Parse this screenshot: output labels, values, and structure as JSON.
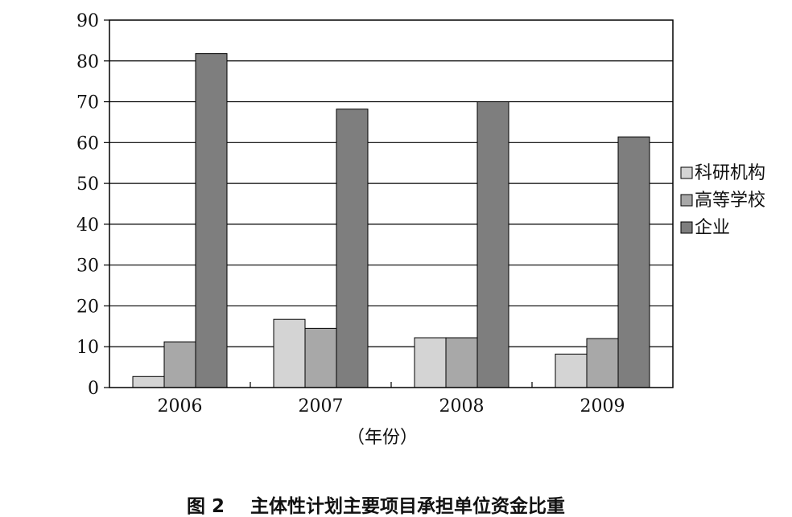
{
  "chart_data": {
    "type": "bar",
    "title": "",
    "caption_number": "图 2",
    "caption_text": "主体性计划主要项目承担单位资金比重",
    "xlabel": "（年份）",
    "ylabel": "",
    "categories": [
      "2006",
      "2007",
      "2008",
      "2009"
    ],
    "ylim": [
      0,
      90
    ],
    "yticks": [
      0,
      10,
      20,
      30,
      40,
      50,
      60,
      70,
      80,
      90
    ],
    "grid": true,
    "legend_position": "right",
    "series": [
      {
        "name": "科研机构",
        "color": "#d4d4d4",
        "values": [
          2.7,
          16.7,
          12.2,
          8.2
        ]
      },
      {
        "name": "高等学校",
        "color": "#a8a8a8",
        "values": [
          11.2,
          14.5,
          12.2,
          12.0
        ]
      },
      {
        "name": "企业",
        "color": "#7e7e7e",
        "values": [
          81.8,
          68.2,
          70.0,
          61.4
        ]
      }
    ]
  }
}
